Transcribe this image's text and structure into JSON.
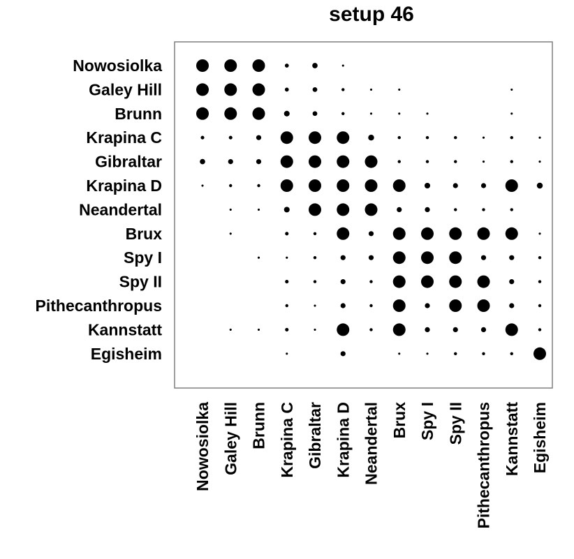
{
  "chart_data": {
    "type": "dot-matrix",
    "title": "setup 46",
    "rows": [
      "Nowosiolka",
      "Galey Hill",
      "Brunn",
      "Krapina C",
      "Gibraltar",
      "Krapina D",
      "Neandertal",
      "Brux",
      "Spy I",
      "Spy II",
      "Pithecanthropus",
      "Kannstatt",
      "Egisheim"
    ],
    "columns": [
      "Nowosiolka",
      "Galey Hill",
      "Brunn",
      "Krapina C",
      "Gibraltar",
      "Krapina D",
      "Neandertal",
      "Brux",
      "Spy I",
      "Spy II",
      "Pithecanthropus",
      "Kannstatt",
      "Egisheim"
    ],
    "values": [
      [
        1.0,
        1.0,
        1.0,
        0.1,
        0.18,
        0.03,
        0.0,
        0.0,
        0.0,
        0.0,
        0.0,
        0.0,
        0.0
      ],
      [
        1.0,
        1.0,
        1.0,
        0.1,
        0.14,
        0.06,
        0.03,
        0.03,
        0.0,
        0.0,
        0.0,
        0.03,
        0.0
      ],
      [
        1.0,
        1.0,
        1.0,
        0.2,
        0.14,
        0.06,
        0.03,
        0.03,
        0.03,
        0.0,
        0.0,
        0.03,
        0.0
      ],
      [
        0.08,
        0.08,
        0.16,
        1.0,
        1.0,
        1.0,
        0.22,
        0.06,
        0.06,
        0.06,
        0.03,
        0.06,
        0.03
      ],
      [
        0.18,
        0.16,
        0.16,
        1.0,
        1.0,
        1.0,
        1.0,
        0.06,
        0.06,
        0.06,
        0.03,
        0.06,
        0.03
      ],
      [
        0.03,
        0.06,
        0.06,
        1.0,
        1.0,
        1.0,
        1.0,
        1.0,
        0.2,
        0.16,
        0.16,
        1.0,
        0.22
      ],
      [
        0.0,
        0.03,
        0.03,
        0.2,
        1.0,
        1.0,
        1.0,
        0.16,
        0.16,
        0.06,
        0.06,
        0.06,
        0.0
      ],
      [
        0.0,
        0.03,
        0.0,
        0.08,
        0.06,
        1.0,
        0.16,
        1.0,
        1.0,
        1.0,
        1.0,
        1.0,
        0.03
      ],
      [
        0.0,
        0.0,
        0.03,
        0.03,
        0.06,
        0.16,
        0.16,
        1.0,
        1.0,
        1.0,
        0.16,
        0.16,
        0.06
      ],
      [
        0.0,
        0.0,
        0.0,
        0.08,
        0.06,
        0.16,
        0.06,
        1.0,
        1.0,
        1.0,
        1.0,
        0.16,
        0.06
      ],
      [
        0.0,
        0.0,
        0.0,
        0.06,
        0.03,
        0.16,
        0.06,
        1.0,
        0.16,
        1.0,
        1.0,
        0.16,
        0.06
      ],
      [
        0.0,
        0.03,
        0.03,
        0.08,
        0.03,
        1.0,
        0.06,
        1.0,
        0.16,
        0.16,
        0.16,
        1.0,
        0.06
      ],
      [
        0.0,
        0.0,
        0.0,
        0.03,
        0.0,
        0.16,
        0.0,
        0.03,
        0.03,
        0.06,
        0.06,
        0.06,
        1.0
      ]
    ],
    "colors": {
      "dot": "#000000",
      "border": "#7f7f7f",
      "background": "#ffffff"
    }
  }
}
